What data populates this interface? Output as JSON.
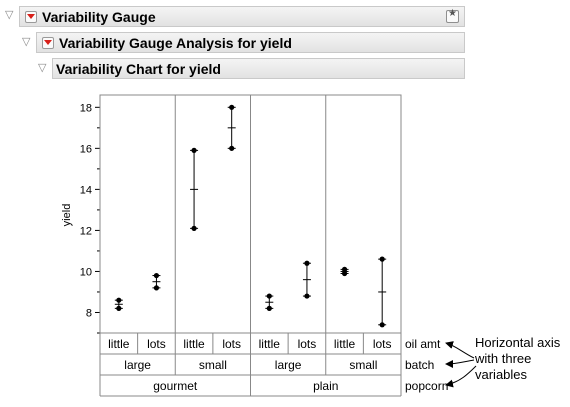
{
  "outline": {
    "level1_title": "Variability Gauge",
    "level2_title": "Variability Gauge Analysis for yield",
    "level3_title": "Variability Chart for yield"
  },
  "icons": {
    "disclosure": "disclosure-triangle-icon",
    "red_triangle": "red-triangle-menu-icon",
    "pin": "pin-icon"
  },
  "colors": {
    "red_triangle": "#d8201a",
    "header_bg": "#e8e8e8",
    "grid_border": "#888888"
  },
  "chart_data": {
    "type": "variability",
    "title": "",
    "ylabel": "yield",
    "ylim": [
      7,
      18.6
    ],
    "yticks": [
      8,
      10,
      12,
      14,
      16,
      18
    ],
    "x_factors": [
      {
        "name": "oil amt",
        "levels": [
          "little",
          "lots",
          "little",
          "lots",
          "little",
          "lots",
          "little",
          "lots"
        ]
      },
      {
        "name": "batch",
        "levels": [
          "large",
          "small",
          "large",
          "small"
        ]
      },
      {
        "name": "popcorn",
        "levels": [
          "gourmet",
          "plain"
        ]
      }
    ],
    "cells": [
      {
        "values": [
          8.2,
          8.6
        ],
        "mean": 8.4
      },
      {
        "values": [
          9.2,
          9.8
        ],
        "mean": 9.5
      },
      {
        "values": [
          12.1,
          15.9
        ],
        "mean": 14.0
      },
      {
        "values": [
          16.0,
          18.0
        ],
        "mean": 17.0
      },
      {
        "values": [
          8.2,
          8.8
        ],
        "mean": 8.5
      },
      {
        "values": [
          8.8,
          10.4
        ],
        "mean": 9.6
      },
      {
        "values": [
          9.9,
          10.1
        ],
        "mean": 10.0
      },
      {
        "values": [
          7.4,
          10.6
        ],
        "mean": 9.0
      }
    ]
  },
  "annotation": {
    "lines": [
      "Horizontal axis",
      "with three",
      "variables"
    ]
  }
}
